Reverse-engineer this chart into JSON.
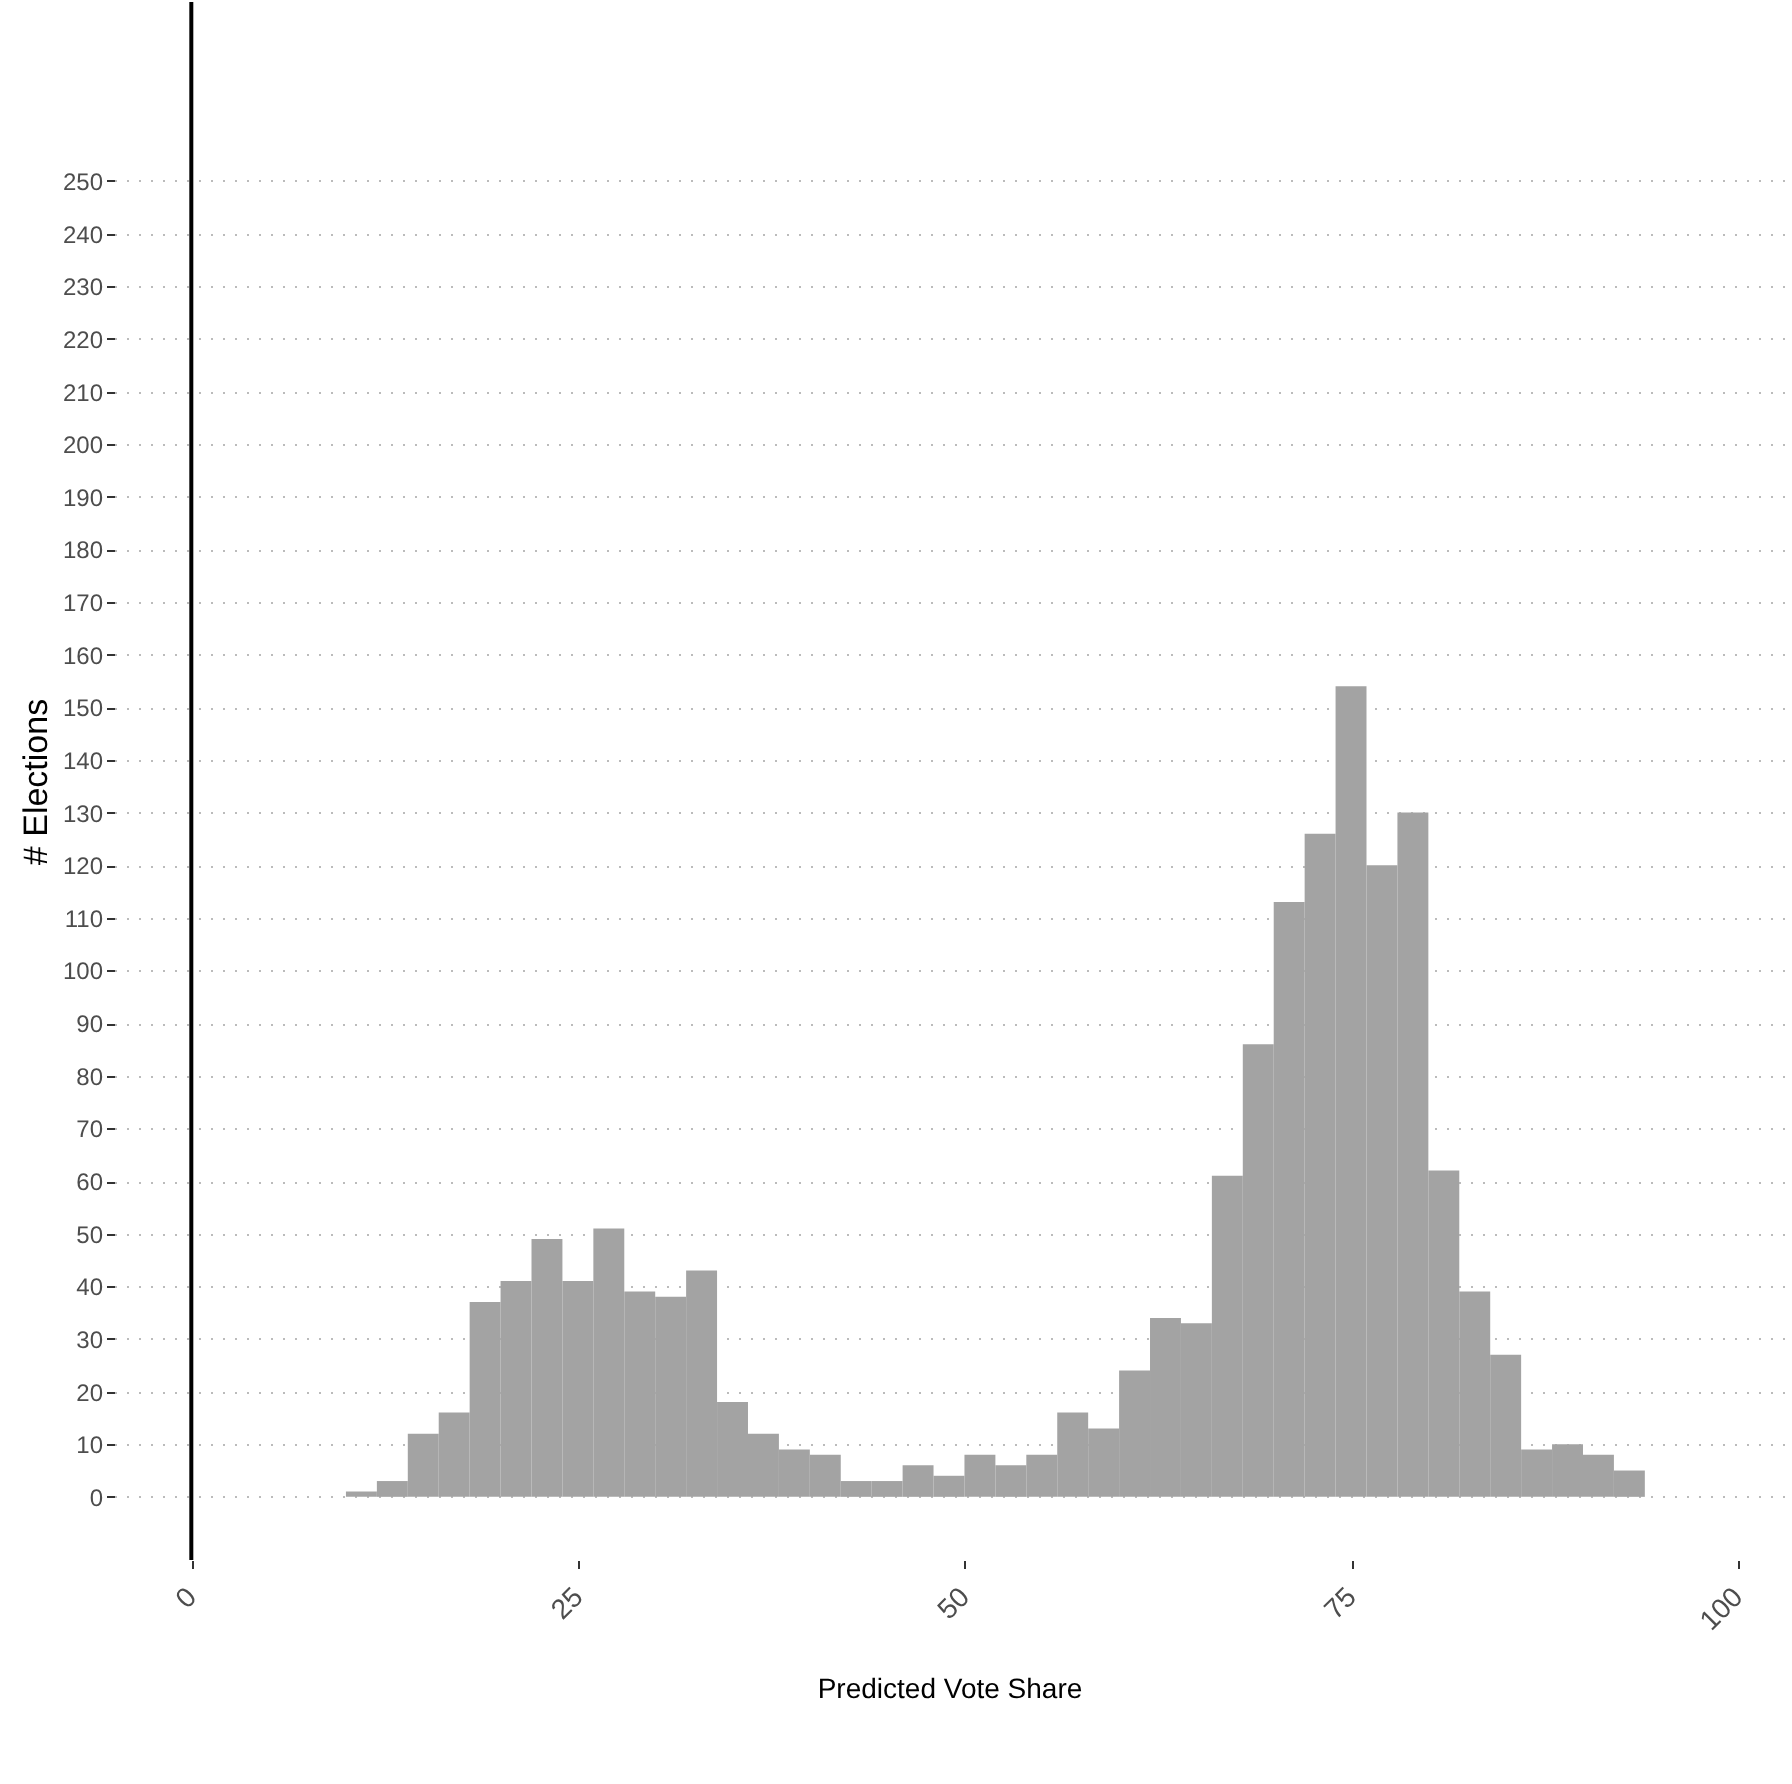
{
  "chart_data": {
    "type": "histogram",
    "xlabel": "Predicted Vote Share",
    "ylabel": "# Elections",
    "bins": [
      0,
      2,
      4,
      6,
      8,
      10,
      12,
      14,
      16,
      18,
      20,
      22,
      24,
      26,
      28,
      30,
      32,
      34,
      36,
      38,
      40,
      42,
      44,
      46,
      48,
      50,
      52,
      54,
      56,
      58,
      60,
      62,
      64,
      66,
      68,
      70,
      72,
      74,
      76,
      78,
      80,
      82,
      84,
      86,
      88,
      90,
      92,
      94,
      96,
      98
    ],
    "values": [
      0,
      0,
      0,
      0,
      0,
      1,
      3,
      12,
      16,
      37,
      41,
      49,
      41,
      51,
      39,
      38,
      43,
      18,
      12,
      9,
      8,
      3,
      3,
      6,
      4,
      8,
      6,
      8,
      16,
      13,
      24,
      34,
      33,
      61,
      86,
      113,
      126,
      154,
      120,
      130,
      62,
      39,
      27,
      9,
      10,
      8,
      5,
      0,
      0
    ],
    "color": "#a3a3a3",
    "xlim": [
      -5,
      103
    ],
    "xticks": [
      0,
      25,
      50,
      75,
      100
    ],
    "ylim": [
      -12,
      284
    ],
    "yticks": [
      0,
      10,
      20,
      30,
      40,
      50,
      60,
      70,
      80,
      90,
      100,
      110,
      120,
      130,
      140,
      150,
      160,
      170,
      180,
      190,
      200,
      210,
      220,
      230,
      240,
      250
    ],
    "grid": "y",
    "ref_lines": [
      {
        "axis": "x",
        "value": 0,
        "color": "#000000"
      }
    ]
  }
}
